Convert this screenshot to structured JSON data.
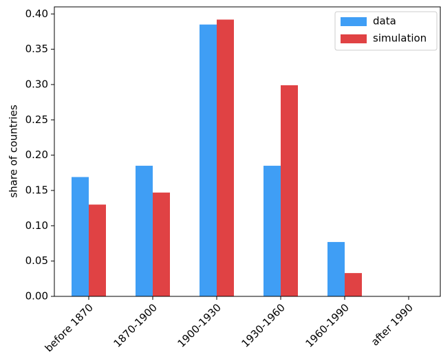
{
  "chart_data": {
    "type": "bar",
    "ylabel": "share of countries",
    "categories": [
      "before 1870",
      "1870-1900",
      "1900-1930",
      "1930-1960",
      "1960-1990",
      "after 1990"
    ],
    "series": [
      {
        "name": "data",
        "color": "#3f9ef5",
        "values": [
          0.169,
          0.185,
          0.385,
          0.185,
          0.077,
          0
        ]
      },
      {
        "name": "simulation",
        "color": "#e04244",
        "values": [
          0.13,
          0.147,
          0.392,
          0.299,
          0.033,
          0
        ]
      }
    ],
    "ylim": [
      0,
      0.41
    ],
    "yticks": [
      {
        "value": 0,
        "label": "0.00"
      },
      {
        "value": 0.05,
        "label": "0.05"
      },
      {
        "value": 0.1,
        "label": "0.10"
      },
      {
        "value": 0.15,
        "label": "0.15"
      },
      {
        "value": 0.2,
        "label": "0.20"
      },
      {
        "value": 0.25,
        "label": "0.25"
      },
      {
        "value": 0.3,
        "label": "0.30"
      },
      {
        "value": 0.35,
        "label": "0.35"
      },
      {
        "value": 0.4,
        "label": "0.40"
      }
    ],
    "legend": "upper right"
  }
}
